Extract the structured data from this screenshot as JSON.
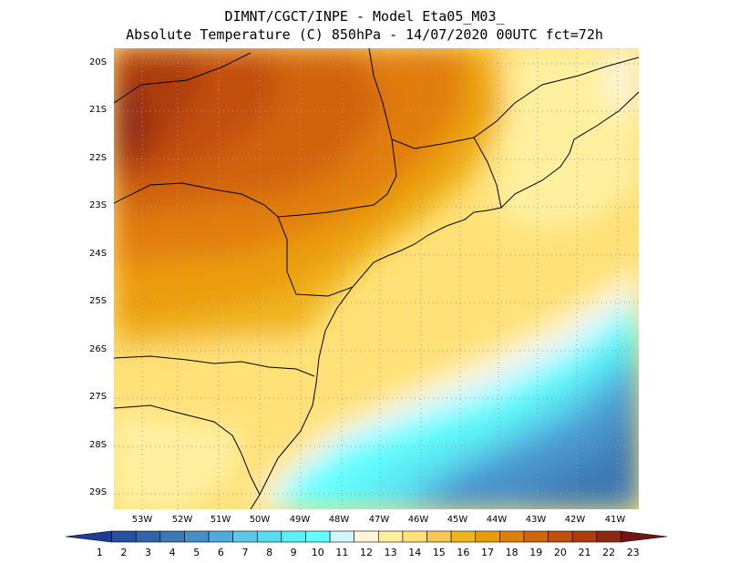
{
  "header": {
    "line1": "DIMNT/CGCT/INPE -  Model Eta05_M03_",
    "line2": "Absolute Temperature (C) 850hPa -  14/07/2020 00UTC fct=72h"
  },
  "map": {
    "lat_labels": [
      "20S",
      "21S",
      "22S",
      "23S",
      "24S",
      "25S",
      "26S",
      "27S",
      "28S",
      "29S"
    ],
    "lon_labels": [
      "53W",
      "52W",
      "51W",
      "50W",
      "49W",
      "48W",
      "47W",
      "46W",
      "45W",
      "44W",
      "43W",
      "42W",
      "41W"
    ]
  },
  "colorbar": {
    "labels": [
      "1",
      "2",
      "3",
      "4",
      "5",
      "6",
      "7",
      "8",
      "9",
      "10",
      "11",
      "12",
      "13",
      "14",
      "15",
      "16",
      "17",
      "18",
      "19",
      "20",
      "21",
      "22",
      "23"
    ],
    "colors": [
      "#1e3c96",
      "#2850a0",
      "#3264aa",
      "#3c78b4",
      "#4690c8",
      "#50aadc",
      "#5ac8e6",
      "#5adcf0",
      "#5af0f5",
      "#64ffff",
      "#d2f5ff",
      "#fff5dc",
      "#fff0a0",
      "#ffe178",
      "#f5c850",
      "#f0b41e",
      "#eb9b0a",
      "#e17d0a",
      "#d2640a",
      "#c3500a",
      "#af3c0a",
      "#8c2814",
      "#731414"
    ]
  }
}
